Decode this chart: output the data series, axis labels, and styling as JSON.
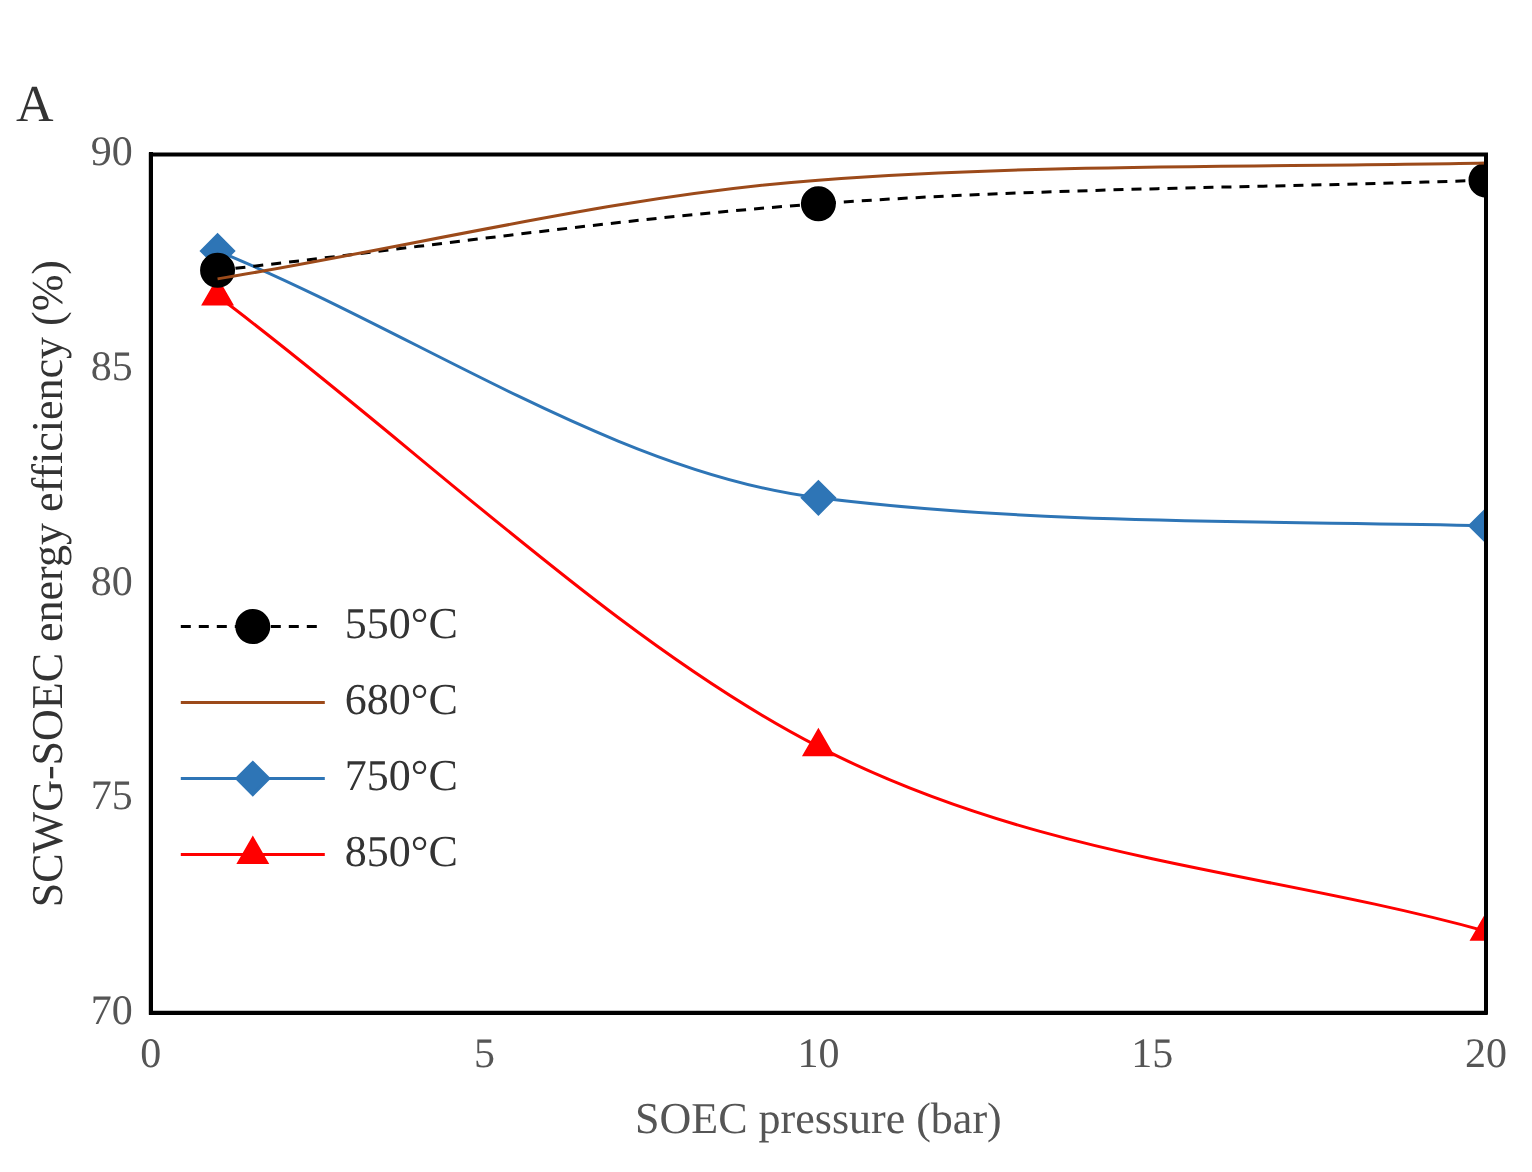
{
  "chart_data": {
    "type": "line",
    "title": "A",
    "xlabel": "SOEC pressure (bar)",
    "ylabel": "SCWG-SOEC energy efficiency (%)",
    "x": [
      1,
      10,
      20
    ],
    "series": [
      {
        "name": "550°C",
        "color": "#000000",
        "values": [
          87.3,
          88.85,
          89.4
        ],
        "marker": "circle",
        "line_style": "dashed"
      },
      {
        "name": "680°C",
        "color": "#9c4a1a",
        "values": [
          87.1,
          89.4,
          89.8
        ],
        "marker": "none",
        "line_style": "solid"
      },
      {
        "name": "750°C",
        "color": "#2e75b6",
        "values": [
          87.75,
          82.0,
          81.35
        ],
        "marker": "diamond",
        "line_style": "solid"
      },
      {
        "name": "850°C",
        "color": "#ff0000",
        "values": [
          86.7,
          76.2,
          71.9
        ],
        "marker": "triangle",
        "line_style": "solid"
      }
    ],
    "xlim": [
      0,
      20
    ],
    "xticks": [
      0,
      5,
      10,
      15,
      20
    ],
    "ylim": [
      70,
      90
    ],
    "yticks": [
      70,
      75,
      80,
      85,
      90
    ],
    "grid": false,
    "legend": "left"
  }
}
